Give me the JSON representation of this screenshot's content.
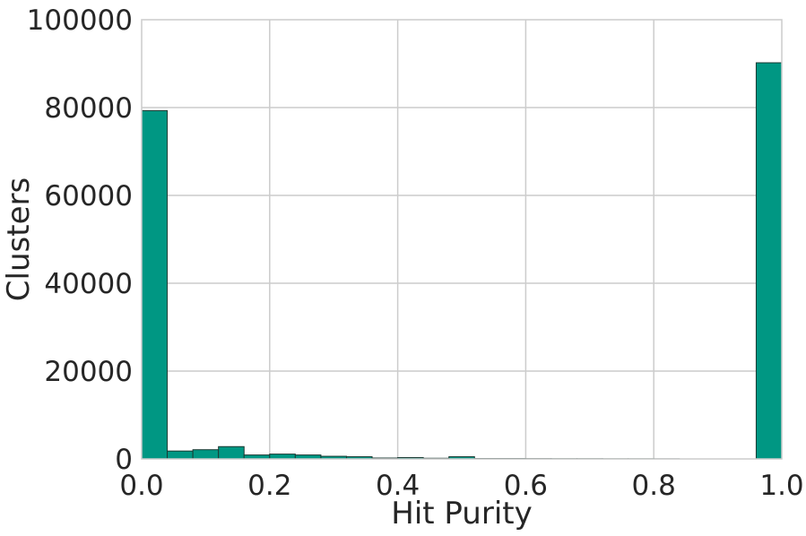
{
  "chart_data": {
    "type": "bar",
    "title": "",
    "xlabel": "Hit Purity",
    "ylabel": "Clusters",
    "xlim": [
      0.0,
      1.0
    ],
    "ylim": [
      0,
      100000
    ],
    "grid": true,
    "bin_width": 0.04,
    "x_ticks": [
      0.0,
      0.2,
      0.4,
      0.6,
      0.8,
      1.0
    ],
    "x_tick_labels": [
      "0.0",
      "0.2",
      "0.4",
      "0.6",
      "0.8",
      "1.0"
    ],
    "y_ticks": [
      0,
      20000,
      40000,
      60000,
      80000,
      100000
    ],
    "y_tick_labels": [
      "0",
      "20000",
      "40000",
      "60000",
      "80000",
      "100000"
    ],
    "bins": [
      0.0,
      0.04,
      0.08,
      0.12,
      0.16,
      0.2,
      0.24,
      0.28,
      0.32,
      0.36,
      0.4,
      0.44,
      0.48,
      0.52,
      0.56,
      0.6,
      0.64,
      0.68,
      0.72,
      0.76,
      0.8,
      0.84,
      0.88,
      0.92,
      0.96
    ],
    "values": [
      79300,
      1800,
      2100,
      2800,
      900,
      1100,
      900,
      600,
      500,
      200,
      300,
      150,
      500,
      100,
      100,
      80,
      60,
      60,
      40,
      40,
      30,
      0,
      0,
      0,
      90200
    ],
    "bar_color": "#009783",
    "bar_edge_color": "#1a3a33",
    "grid_color": "#cccccc"
  }
}
